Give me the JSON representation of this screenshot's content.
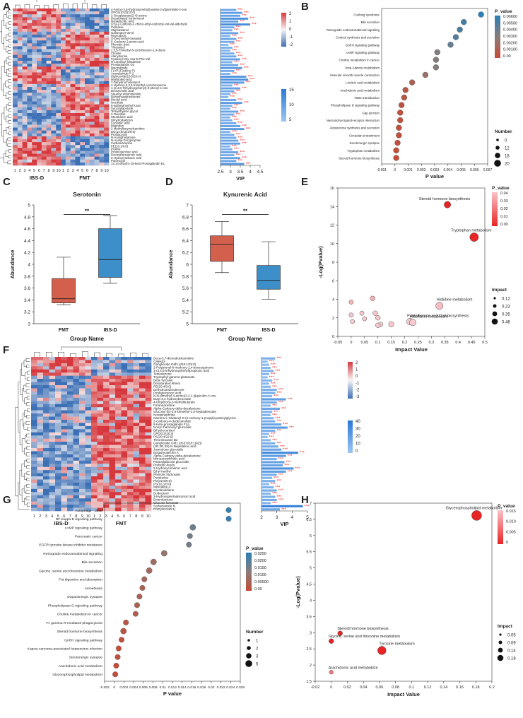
{
  "panels": {
    "A": {
      "letter": "A",
      "metabolites": [
        "4-Amino-3,5-(hydroxymethyl)oxolan-2-yl]pyrimidin-2-one",
        "OPC6(10:0)(10:0)",
        "2-Oxoglutarate(2-4)-ureine",
        "Desaturated norimmunol",
        "Nonadecylic acid",
        "(2S)-2-Carboxy-2-chloro-ethyl-carbonyl-Val-Val-aldehyde",
        "Cellulose",
        "Stigmastanol",
        "Gammacer-30-ol",
        "Reproducin",
        "O-Desmethyl-tramadol",
        "5'-Carboxy-2-amino acid",
        "Phenolic acid",
        "Thioanisol",
        "2,5,5-Trimethyl-5-cyclohexene-1,4-dione",
        "Choline",
        "Alanylserine",
        "Cysteinyl-Gly-Asp-D-Phe-Val",
        "N-Linoleoyl Glutamine",
        "Prostaglandin D3",
        "Niacinamide",
        "FLYP1F(valine-P)",
        "Anandamide-P-2",
        "Diglyceride(16:0/20:4)",
        "Myristoleic-acid",
        "7-Dehydrocholesterol",
        "4-Hydroxy-2,2,6-trimethyl-cyclohexanone",
        "1-(2,4,6-Trihydroxyphenyl)-3-phenyl-1-one",
        "Deoxycholic acid",
        "Stearoyl ethanolamide",
        "Dehydroandrosterone",
        "Dioctyl acid",
        "Isocitrate",
        "5-sulfanylmethyl furan",
        "Succinylacetone",
        "Tetraethylene glycol",
        "2-Oxindole",
        "Stearidonic acid",
        "Dihydrodaidzein",
        "Cyclamic acid",
        "Ibuprofen",
        "2-Methylbutyroylcarnitine",
        "DG(14:0/18:2/0:0)",
        "Prostacyclin",
        "N-Acetylhistamine",
        "N-Acetyl-D-tryptophan",
        "Carbamazepine",
        "PE(18:1/0:0)",
        "Proline",
        "Protocatechuic acid",
        "Docosahexaenoic acid",
        "3-Hydroxysebacic acid",
        "Putrescine",
        "13,14-dihydro-15-keto Prostaglandin E1"
      ],
      "vip": [
        3.3,
        3.6,
        3.5,
        3.9,
        3.4,
        4.0,
        3.2,
        3.1,
        3.4,
        3.0,
        3.3,
        3.2,
        2.9,
        3.1,
        3.0,
        3.2,
        3.3,
        3.5,
        3.1,
        3.4,
        3.6,
        3.2,
        3.0,
        3.8,
        3.9,
        3.7,
        3.1,
        3.5,
        3.2,
        3.0,
        2.9,
        3.3,
        3.6,
        3.1,
        3.0,
        3.4,
        3.2,
        3.0,
        3.1,
        3.3,
        3.5,
        3.7,
        3.0,
        3.2,
        3.3,
        3.4,
        3.5,
        3.0,
        3.1,
        3.4,
        3.2,
        3.5,
        3.3,
        3.7
      ],
      "stars": "***",
      "groups": [
        "IBS-D",
        "FMT"
      ],
      "sample_ticks": [
        "1",
        "2",
        "3",
        "4",
        "5",
        "6",
        "7",
        "8",
        "9",
        "10",
        "1",
        "2",
        "3",
        "4",
        "5",
        "6",
        "7",
        "8",
        "9",
        "10"
      ],
      "xlabel": "VIP",
      "x_ticks": [
        "2.5",
        "3",
        "3.5",
        "4",
        "4.5"
      ],
      "legend_top_ticks": [
        "2",
        "1",
        "0",
        "-1",
        "-2"
      ],
      "legend_bottom_ticks": [
        "15",
        "10",
        "5"
      ]
    },
    "B": {
      "letter": "B",
      "pathways": [
        "Cushing syndrome",
        "Bile secretion",
        "Retrograde endocannabinoid signaling",
        "Cortisol synthesis and secretion",
        "GnRH signaling pathway",
        "cAMP signaling pathway",
        "Choline metabolism in cancer",
        "beta-Alanine metabolism",
        "Vascular smooth muscle contraction",
        "Linoleic acid metabolism",
        "Arachidonic acid metabolism",
        "Taste transduction",
        "Phospholipase D signaling pathway",
        "Gap junction",
        "Neuroactive ligand-receptor interaction",
        "Aldosterone synthesis and secretion",
        "Circadian entrainment",
        "Serotonergic synapse",
        "Tryptophan metabolism",
        "Steroid hormone biosynthesis"
      ],
      "p_values": [
        0.0065,
        0.0052,
        0.0049,
        0.0046,
        0.0042,
        0.0032,
        0.0031,
        0.0031,
        0.0023,
        0.0013,
        0.0008,
        0.0007,
        0.0005,
        0.0004,
        0.0004,
        0.0003,
        0.0003,
        0.0002,
        0.0001,
        0.0001
      ],
      "numbers": [
        1,
        1,
        1,
        1,
        1,
        1,
        1,
        1,
        1,
        1,
        1,
        1,
        1,
        1,
        1,
        1,
        1,
        1,
        1,
        1
      ],
      "xlabel": "P value",
      "x_ticks": [
        "-0.001",
        "0",
        "0.001",
        "0.002",
        "0.003",
        "0.004",
        "0.005",
        "0.006",
        "0.007"
      ],
      "x_range": [
        -0.001,
        0.007
      ],
      "legend_title": "P_value",
      "legend_ticks": [
        "0.00600",
        "0.00500",
        "0.00400",
        "0.00300",
        "0.00200",
        "0.00100",
        "0.00"
      ],
      "size_legend_title": "Number",
      "size_legend_values": [
        "0",
        "12",
        "18",
        "20"
      ]
    },
    "C": {
      "letter": "C",
      "title": "Serotonin",
      "ylabel": "Abundance",
      "xlabel": "Group Name",
      "categories": [
        "FMT",
        "IBS-D"
      ],
      "colors": [
        "#d35f4d",
        "#3c8fc8"
      ],
      "boxes": [
        {
          "min": 3.32,
          "q1": 3.35,
          "median": 3.42,
          "q3": 3.76,
          "max": 4.12
        },
        {
          "min": 3.68,
          "q1": 3.78,
          "median": 4.08,
          "q3": 4.6,
          "max": 4.82
        }
      ],
      "ylim": [
        3,
        5
      ],
      "y_ticks": [
        "3",
        "3.2",
        "3.4",
        "3.6",
        "3.8",
        "4",
        "4.2",
        "4.4",
        "4.6",
        "4.8",
        "5"
      ],
      "significance": "**"
    },
    "D": {
      "letter": "D",
      "title": "Kynurenic Acid",
      "ylabel": "Abundance",
      "xlabel": "Group Name",
      "categories": [
        "FMT",
        "IBS-D"
      ],
      "colors": [
        "#d35f4d",
        "#3c8fc8"
      ],
      "boxes": [
        {
          "min": 5.86,
          "q1": 6.05,
          "median": 6.34,
          "q3": 6.48,
          "max": 6.72
        },
        {
          "min": 5.41,
          "q1": 5.58,
          "median": 5.73,
          "q3": 5.98,
          "max": 6.38
        }
      ],
      "ylim": [
        5.0,
        7.0
      ],
      "y_ticks": [
        "5",
        "5.2",
        "5.4",
        "5.6",
        "5.8",
        "6",
        "6.2",
        "6.4",
        "6.6",
        "6.8",
        "7"
      ],
      "significance": "**"
    },
    "E": {
      "letter": "E",
      "xlabel": "Impact Value",
      "ylabel": "-Log(Pvalue)",
      "x_ticks": [
        "-0.05",
        "0",
        "0.05",
        "0.1",
        "0.15",
        "0.2",
        "0.25",
        "0.3",
        "0.35",
        "0.4",
        "0.45",
        "0.5"
      ],
      "x_range": [
        -0.05,
        0.5
      ],
      "y_ticks": [
        "0",
        "2",
        "4",
        "6",
        "8",
        "10",
        "12",
        "14",
        "16"
      ],
      "y_range": [
        0,
        16
      ],
      "points": [
        {
          "x": 0.36,
          "y": 14.2,
          "impact": 0.3,
          "label": "Steroid hormone biosynthesis"
        },
        {
          "x": 0.46,
          "y": 10.7,
          "impact": 0.46,
          "label": "Tryptophan metabolism"
        },
        {
          "x": 0.33,
          "y": 3.3,
          "impact": 0.35,
          "label": "Histidine metabolism"
        },
        {
          "x": 0.22,
          "y": 1.6,
          "impact": 0.3,
          "label": "Pantothenate and CoA biosynthesis"
        },
        {
          "x": 0.23,
          "y": 1.5,
          "impact": 0.3,
          "label": "Riboflavin metabolism"
        },
        {
          "x": 0,
          "y": 3.7,
          "impact": 0.12,
          "label": ""
        },
        {
          "x": 0,
          "y": 2.3,
          "impact": 0.12,
          "label": ""
        },
        {
          "x": 0.005,
          "y": 1.6,
          "impact": 0.12,
          "label": ""
        },
        {
          "x": 0.04,
          "y": 2.5,
          "impact": 0.12,
          "label": ""
        },
        {
          "x": 0.05,
          "y": 1.9,
          "impact": 0.12,
          "label": ""
        },
        {
          "x": 0.08,
          "y": 4.1,
          "impact": 0.15,
          "label": ""
        },
        {
          "x": 0.09,
          "y": 2.5,
          "impact": 0.15,
          "label": ""
        },
        {
          "x": 0.1,
          "y": 2.0,
          "impact": 0.15,
          "label": ""
        },
        {
          "x": 0.11,
          "y": 1.3,
          "impact": 0.15,
          "label": ""
        },
        {
          "x": 0.1,
          "y": 1.2,
          "impact": 0.15,
          "label": ""
        },
        {
          "x": 0.15,
          "y": 1.3,
          "impact": 0.2,
          "label": ""
        }
      ],
      "legend_title": "P_value",
      "legend_ticks": [
        "0.04",
        "0.03",
        "0.02",
        "0.01",
        "0.00"
      ],
      "size_legend_title": "Impact",
      "size_legend_values": [
        "0.12",
        "0.23",
        "0.35",
        "0.46"
      ]
    },
    "F": {
      "letter": "F",
      "metabolites": [
        "Deca-3,7-dienedioylcarnitine",
        "Cafestol",
        "Ganglioside GM3 (d18:1/25:0)",
        "2-Polyprenyl-6-methoxy-1,4-benzoquinone",
        "3-(3,4,5-trihydroxyphenyl)propionic acid",
        "Testosterone",
        "Tryptophyl-gamma-glutamate",
        "Beta-Tyrosine",
        "Desaturated ethers",
        "PE(20:4/0:0)",
        "Dehydroandrosterone",
        "Pentadecanoic acid",
        "N,N-dimethyl-4-amino(3,2,1-ij)quinolin-4-one",
        "Butyl 3,4-hydroxybenzoate",
        "4-Dihydroxy-2-methylbutyrate",
        "Furanoacetone",
        "Alpha-Carboxy-delta-decalactone",
        "Glucosyl (E)-2,6-Dimethyl-2,5-heptadienoate",
        "Norepinephrine",
        "Gamma-L-Glutamyl-S-(2-carboxy-1-propyl)cysteinylglycine",
        "2-Carboxy-4-dodecanolide",
        "8-Keto-prostaglandin F1a",
        "Nonyl rhamnosyl glucoside",
        "Dihydrocortisol",
        "GP(20:2/18:3)",
        "PS(20:4/22:6)",
        "Thromboxane B2",
        "Ganglioside GM1 (d18:0/18:1(9Z))",
        "(1R,2R,3S)-N-Nepetalinic acid",
        "Jasmolone glucoside",
        "Epigalocatechin A",
        "Alpha-Carboxy-delta-decalactone",
        "Monoacetylcholic acid",
        "Pantoylglucose glucoside",
        "Prebiotic-feeds",
        "2-Hydroxycinnamic acid",
        "Ethyl methyl",
        "Phenolic hydroxide",
        "Pyridoxine",
        "PG(22:6/0:0)",
        "PS(16:1/0:0)",
        "Mescaline A",
        "Cardanoldiene",
        "Dodecanol",
        "3-Hydroxypentadecanoic acid",
        "Enterolactone",
        "Glucose fumarate",
        "Surfactamide N",
        "PGP(22:0/20:1)"
      ],
      "vip": [
        2.9,
        2.4,
        2.5,
        2.6,
        2.8,
        2.5,
        2.4,
        2.7,
        2.5,
        2.6,
        3.0,
        2.9,
        2.7,
        3.6,
        3.0,
        2.6,
        3.2,
        2.7,
        2.6,
        2.8,
        2.9,
        3.3,
        3.7,
        2.9,
        2.5,
        2.4,
        2.6,
        2.9,
        3.1,
        3.3,
        4.4,
        3.6,
        3.0,
        3.5,
        3.4,
        4.1,
        3.6,
        3.0,
        2.7,
        2.9,
        2.5,
        2.8,
        3.0,
        2.6,
        2.9,
        3.0,
        2.6,
        4.7,
        3.2
      ],
      "stars": "***",
      "groups": [
        "IBS-D",
        "FMT"
      ],
      "sample_ticks": [
        "1",
        "2",
        "3",
        "4",
        "5",
        "6",
        "7",
        "8",
        "9",
        "10",
        "1",
        "2",
        "3",
        "4",
        "5",
        "6",
        "7",
        "8",
        "9",
        "10"
      ],
      "xlabel": "VIP",
      "x_ticks": [
        "2",
        "3",
        "4",
        "5"
      ],
      "legend_top_ticks": [
        "2",
        "1",
        "0",
        "-1",
        "-2",
        "-3"
      ],
      "legend_bottom_ticks": [
        "40",
        "30",
        "20",
        "10",
        "0"
      ]
    },
    "G": {
      "letter": "G",
      "pathways": [
        "Autophagy - other",
        "NF-kappa B signaling pathway",
        "cAMP signaling pathway",
        "Pancreatic cancer",
        "EGFR tyrosine kinase inhibitor resistance",
        "Retrograde endocannabinoid signaling",
        "Bile secretion",
        "Glycine, serine and threonine metabolism",
        "Fat digestion and absorption",
        "Amoebiasis",
        "Dopaminergic synapse",
        "Phospholipase D signaling pathway",
        "Choline metabolism in cancer",
        "Fc gamma R-mediated phagocytosis",
        "Steroid hormone biosynthesis",
        "GnRH signaling pathway",
        "Kaposi sarcoma-associated herpesvirus infection",
        "Serotonergic synapse",
        "Arachidonic acid metabolism",
        "Glycerophospholipid metabolism"
      ],
      "p_values": [
        0.0236,
        0.0236,
        0.0162,
        0.0156,
        0.0154,
        0.0103,
        0.0081,
        0.0072,
        0.0062,
        0.0058,
        0.0052,
        0.0047,
        0.0044,
        0.0024,
        0.0019,
        0.0015,
        0.0009,
        0.0007,
        0.0004,
        0.0002
      ],
      "xlabel": "P value",
      "x_ticks": [
        "-0.002",
        "0",
        "0.002",
        "0.004",
        "0.006",
        "0.008",
        "0.01",
        "0.012",
        "0.014",
        "0.016",
        "0.018",
        "0.02",
        "0.022",
        "0.024",
        "0.026"
      ],
      "x_range": [
        -0.002,
        0.026
      ],
      "legend_title": "P_value",
      "legend_ticks": [
        "0.0250",
        "0.0200",
        "0.0150",
        "0.0100",
        "0.00500",
        "0.00"
      ],
      "size_legend_title": "Number",
      "size_legend_values": [
        "1",
        "2",
        "3",
        "5"
      ]
    },
    "H": {
      "letter": "H",
      "xlabel": "Impact Value",
      "ylabel": "-Log(Pvalue)",
      "x_ticks": [
        "-0.02",
        "0",
        "0.02",
        "0.04",
        "0.06",
        "0.08",
        "0.1",
        "0.12",
        "0.14",
        "0.16",
        "0.18",
        "0.2"
      ],
      "x_range": [
        -0.02,
        0.2
      ],
      "y_ticks": [
        "1.5",
        "2",
        "2.5",
        "3",
        "3.5",
        "4",
        "4.5",
        "5",
        "5.5",
        "6",
        "6.5",
        "7"
      ],
      "y_range": [
        1.5,
        7
      ],
      "points": [
        {
          "x": 0.181,
          "y": 6.62,
          "impact": 0.18,
          "label": "Glycerophospholipid metabolism"
        },
        {
          "x": 0.011,
          "y": 2.98,
          "impact": 0.05,
          "label": "Steroid hormone biosynthesis"
        },
        {
          "x": 0,
          "y": 2.74,
          "impact": 0.05,
          "label": "Glycine, serine and threonine metabolism"
        },
        {
          "x": 0.063,
          "y": 2.45,
          "impact": 0.14,
          "label": "Tyrosine metabolism"
        },
        {
          "x": 0,
          "y": 1.78,
          "impact": 0.03,
          "label": "Arachidonic acid metabolism"
        }
      ],
      "legend_title": "P_value",
      "legend_ticks": [
        "0.015",
        "0.010",
        "0.005",
        "0"
      ],
      "size_legend_title": "Impact",
      "size_legend_values": [
        "0.05",
        "0.09",
        "0.14",
        "0.18"
      ]
    }
  },
  "chart_data": [
    {
      "type": "heatmap",
      "panel": "A",
      "xlabel": "VIP",
      "x_ticks": [
        "2.5",
        "3",
        "3.5",
        "4",
        "4.5"
      ],
      "groups": [
        "IBS-D",
        "FMT"
      ],
      "row_count": 54
    },
    {
      "type": "scatter",
      "panel": "B",
      "title": "",
      "xlabel": "P value",
      "ylabel": "",
      "xlim": [
        -0.001,
        0.007
      ]
    },
    {
      "type": "box",
      "panel": "C",
      "title": "Serotonin",
      "xlabel": "Group Name",
      "ylabel": "Abundance",
      "categories": [
        "FMT",
        "IBS-D"
      ],
      "ylim": [
        3,
        5
      ]
    },
    {
      "type": "box",
      "panel": "D",
      "title": "Kynurenic Acid",
      "xlabel": "Group Name",
      "ylabel": "Abundance",
      "categories": [
        "FMT",
        "IBS-D"
      ],
      "ylim": [
        5,
        7
      ]
    },
    {
      "type": "scatter",
      "panel": "E",
      "xlabel": "Impact Value",
      "ylabel": "-Log(Pvalue)",
      "xlim": [
        -0.05,
        0.5
      ],
      "ylim": [
        0,
        16
      ]
    },
    {
      "type": "heatmap",
      "panel": "F",
      "xlabel": "VIP",
      "x_ticks": [
        "2",
        "3",
        "4",
        "5"
      ],
      "groups": [
        "IBS-D",
        "FMT"
      ],
      "row_count": 49
    },
    {
      "type": "scatter",
      "panel": "G",
      "xlabel": "P value",
      "xlim": [
        -0.002,
        0.026
      ]
    },
    {
      "type": "scatter",
      "panel": "H",
      "xlabel": "Impact Value",
      "ylabel": "-Log(Pvalue)",
      "xlim": [
        -0.02,
        0.2
      ],
      "ylim": [
        1.5,
        7
      ]
    }
  ]
}
